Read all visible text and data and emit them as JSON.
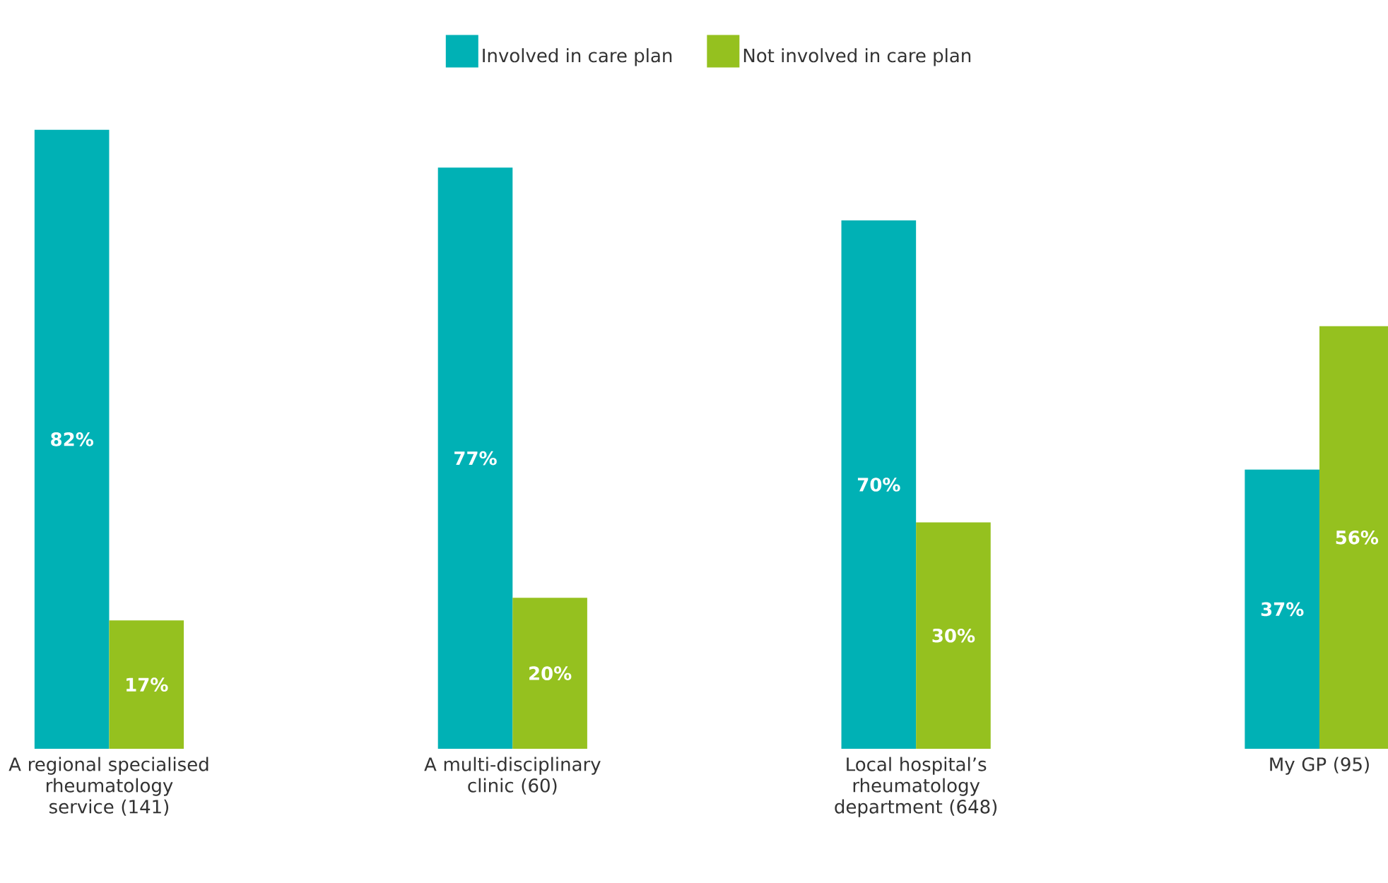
{
  "chart_data": {
    "type": "bar",
    "categories": [
      "A regional specialised rheumatology service (141)",
      "A multi-disciplinary clinic (60)",
      "Local hospital’s rheumatology department (648)",
      "My GP (95)"
    ],
    "series": [
      {
        "name": "Involved in care plan",
        "color": "#00b1b5",
        "values": [
          82,
          77,
          70,
          37
        ],
        "value_labels": [
          "82%",
          "77%",
          "70%",
          "37%"
        ]
      },
      {
        "name": "Not involved in care plan",
        "color": "#95c11f",
        "values": [
          17,
          20,
          30,
          56
        ],
        "value_labels": [
          "17%",
          "20%",
          "30%",
          "56%"
        ]
      }
    ],
    "legend": "top"
  }
}
